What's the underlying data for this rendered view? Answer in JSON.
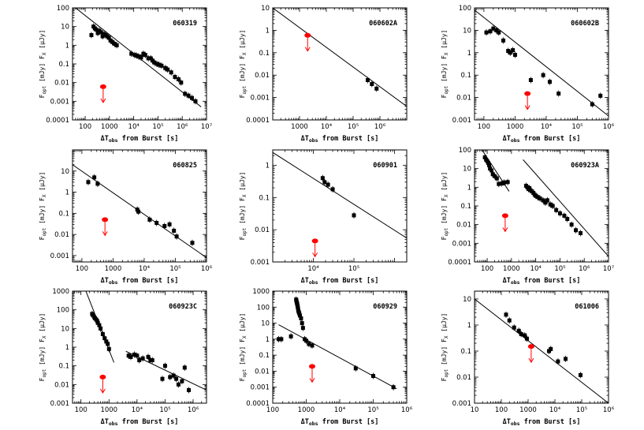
{
  "figure": {
    "xlabel_main": "ΔT",
    "xlabel_sub": "obs",
    "xlabel_rest": " from Burst [s]",
    "ylabel_opt": "F",
    "ylabel_opt_sub": "opt",
    "ylabel_mid": " [mJy]  F",
    "ylabel_x_sub": "X",
    "ylabel_end": " [μJy]",
    "colors": {
      "points": "#000000",
      "upper_limit": "#ff0000",
      "line": "#000000"
    }
  },
  "chart_data": [
    {
      "type": "scatter",
      "name": "060319",
      "xlim": [
        30,
        10000000
      ],
      "ylim": [
        0.0001,
        100
      ],
      "xticks": [
        "100",
        "1000",
        "10⁴",
        "10⁵",
        "10⁶",
        "10⁷"
      ],
      "yticks": [
        "0.0001",
        "0.001",
        "0.01",
        "0.1",
        "1",
        "10",
        "100"
      ],
      "lines": [
        [
          [
            40,
            100
          ],
          [
            6000000,
            0.0005
          ]
        ]
      ],
      "x": [
        180,
        220,
        250,
        280,
        330,
        380,
        450,
        520,
        600,
        700,
        800,
        950,
        1100,
        1300,
        1600,
        2000,
        8000,
        11000,
        13000,
        16000,
        20000,
        25000,
        30000,
        40000,
        50000,
        60000,
        70000,
        90000,
        110000,
        140000,
        200000,
        250000,
        350000,
        500000,
        700000,
        900000,
        1300000,
        1800000,
        2500000,
        3500000
      ],
      "y": [
        3.5,
        10,
        8,
        7,
        4.5,
        6,
        5,
        3,
        4,
        3.5,
        3,
        2.5,
        1.8,
        1.5,
        1.2,
        1,
        0.35,
        0.3,
        0.28,
        0.25,
        0.22,
        0.35,
        0.3,
        0.2,
        0.2,
        0.15,
        0.12,
        0.1,
        0.09,
        0.08,
        0.06,
        0.05,
        0.035,
        0.02,
        0.015,
        0.01,
        0.0025,
        0.002,
        0.0015,
        0.001
      ],
      "upper_limits": [
        {
          "x": 550,
          "y": 0.006
        }
      ]
    },
    {
      "type": "scatter",
      "name": "060602A",
      "xlim": [
        100,
        10000000
      ],
      "ylim": [
        0.0001,
        10
      ],
      "xticks": [
        "1000",
        "10⁴",
        "10⁵",
        "10⁶"
      ],
      "yticks": [
        "0.0001",
        "0.001",
        "0.01",
        "0.1",
        "1",
        "10"
      ],
      "lines": [
        [
          [
            100,
            10
          ],
          [
            10000000,
            0.0004
          ]
        ]
      ],
      "x": [
        350000,
        500000,
        750000
      ],
      "y": [
        0.006,
        0.004,
        0.0025
      ],
      "upper_limits": [
        {
          "x": 2000,
          "y": 0.6
        }
      ]
    },
    {
      "type": "scatter",
      "name": "060602B",
      "xlim": [
        50,
        1000000
      ],
      "ylim": [
        0.001,
        100
      ],
      "xticks": [
        "100",
        "1000",
        "10⁴",
        "10⁵",
        "10⁶"
      ],
      "yticks": [
        "0.001",
        "0.01",
        "0.1",
        "1",
        "10",
        "100"
      ],
      "lines": [
        [
          [
            50,
            80
          ],
          [
            1000000,
            0.0015
          ]
        ]
      ],
      "x": [
        120,
        160,
        200,
        250,
        300,
        420,
        600,
        700,
        850,
        1000,
        3200,
        8000,
        13000,
        25000,
        300000,
        550000
      ],
      "y": [
        8,
        9,
        12,
        10,
        8,
        3.5,
        1.2,
        1,
        1.3,
        0.8,
        0.06,
        0.1,
        0.05,
        0.015,
        0.005,
        0.012
      ],
      "upper_limits": [
        {
          "x": 2500,
          "y": 0.015
        }
      ]
    },
    {
      "type": "scatter",
      "name": "060825",
      "xlim": [
        50,
        1000000
      ],
      "ylim": [
        0.0005,
        100
      ],
      "xticks": [
        "100",
        "1000",
        "10⁴",
        "10⁵",
        "10⁶"
      ],
      "yticks": [
        "0.001",
        "0.01",
        "0.1",
        "1",
        "10"
      ],
      "lines": [
        [
          [
            50,
            20
          ],
          [
            1000000,
            0.0008
          ]
        ]
      ],
      "x": [
        160,
        250,
        320,
        6000,
        6500,
        15000,
        25000,
        45000,
        65000,
        90000,
        110000,
        350000
      ],
      "y": [
        3,
        5,
        2.5,
        0.15,
        0.12,
        0.05,
        0.035,
        0.025,
        0.03,
        0.015,
        0.008,
        0.004
      ],
      "upper_limits": [
        {
          "x": 550,
          "y": 0.05
        }
      ]
    },
    {
      "type": "scatter",
      "name": "060901",
      "xlim": [
        1000,
        2000000
      ],
      "ylim": [
        0.001,
        3
      ],
      "xticks": [
        "10⁴",
        "10⁵"
      ],
      "yticks": [
        "0.001",
        "0.01",
        "0.1",
        "1"
      ],
      "lines": [
        [
          [
            1000,
            2.5
          ],
          [
            2000000,
            0.0055
          ]
        ]
      ],
      "x": [
        17000,
        19000,
        23000,
        30000,
        100000
      ],
      "y": [
        0.4,
        0.3,
        0.25,
        0.18,
        0.028
      ],
      "upper_limits": [
        {
          "x": 11000,
          "y": 0.0045
        }
      ]
    },
    {
      "type": "scatter",
      "name": "060923A",
      "xlim": [
        30,
        10000000
      ],
      "ylim": [
        0.0001,
        100
      ],
      "xticks": [
        "100",
        "1000",
        "10⁴",
        "10⁵",
        "10⁶",
        "10⁷"
      ],
      "yticks": [
        "0.0001",
        "0.001",
        "0.01",
        "0.1",
        "1",
        "10",
        "100"
      ],
      "lines": [
        [
          [
            50,
            150
          ],
          [
            800,
            0.6
          ]
        ],
        [
          [
            3000,
            30
          ],
          [
            10000000,
            0.0002
          ]
        ]
      ],
      "x": [
        80,
        90,
        100,
        110,
        120,
        130,
        150,
        170,
        200,
        250,
        300,
        400,
        500,
        700,
        4000,
        4500,
        5000,
        5500,
        6000,
        7000,
        8000,
        9000,
        10000,
        12000,
        15000,
        20000,
        25000,
        30000,
        40000,
        50000,
        70000,
        100000,
        150000,
        200000,
        300000,
        450000,
        700000
      ],
      "y": [
        40,
        30,
        25,
        20,
        15,
        10,
        8,
        5,
        4,
        3,
        1.5,
        1.6,
        1.8,
        1.9,
        1.2,
        1,
        0.8,
        0.9,
        0.7,
        0.6,
        0.5,
        0.4,
        0.35,
        0.3,
        0.25,
        0.2,
        0.15,
        0.2,
        0.12,
        0.1,
        0.06,
        0.04,
        0.03,
        0.02,
        0.01,
        0.005,
        0.0035
      ],
      "upper_limits": [
        {
          "x": 550,
          "y": 0.03
        }
      ]
    },
    {
      "type": "scatter",
      "name": "060923C",
      "xlim": [
        50,
        3000000
      ],
      "ylim": [
        0.001,
        1000
      ],
      "xticks": [
        "100",
        "1000",
        "10⁴",
        "10⁵",
        "10⁶"
      ],
      "yticks": [
        "0.001",
        "0.01",
        "0.1",
        "1",
        "10",
        "100",
        "1000"
      ],
      "lines": [
        [
          [
            150,
            1000
          ],
          [
            1500,
            0.15
          ]
        ],
        [
          [
            4000,
            0.6
          ],
          [
            3000000,
            0.005
          ]
        ]
      ],
      "x": [
        250,
        270,
        300,
        320,
        350,
        380,
        400,
        450,
        500,
        600,
        700,
        800,
        900,
        1000,
        5000,
        6000,
        8000,
        10000,
        12000,
        16000,
        25000,
        30000,
        35000,
        80000,
        100000,
        150000,
        200000,
        250000,
        300000,
        400000,
        500000,
        700000
      ],
      "y": [
        60,
        50,
        40,
        35,
        30,
        25,
        20,
        15,
        10,
        5,
        3,
        2,
        1.5,
        0.8,
        0.35,
        0.3,
        0.4,
        0.35,
        0.2,
        0.25,
        0.3,
        0.2,
        0.2,
        0.02,
        0.1,
        0.025,
        0.03,
        0.02,
        0.01,
        0.015,
        0.08,
        0.005
      ],
      "upper_limits": [
        {
          "x": 600,
          "y": 0.025
        }
      ]
    },
    {
      "type": "scatter",
      "name": "060929",
      "xlim": [
        100,
        1000000
      ],
      "ylim": [
        0.0001,
        1000
      ],
      "xticks": [
        "100",
        "1000",
        "10⁴",
        "10⁵",
        "10⁶"
      ],
      "yticks": [
        "0.0001",
        "0.001",
        "0.01",
        "0.1",
        "1",
        "10",
        "100",
        "1000"
      ],
      "lines": [
        [
          [
            150,
            8
          ],
          [
            500000,
            0.0008
          ]
        ]
      ],
      "x": [
        150,
        180,
        350,
        500,
        510,
        520,
        530,
        540,
        550,
        560,
        570,
        580,
        600,
        620,
        650,
        700,
        750,
        800,
        900,
        1000,
        1200,
        1500,
        30000,
        100000,
        400000
      ],
      "y": [
        1,
        1,
        1.5,
        300,
        250,
        200,
        180,
        150,
        120,
        100,
        80,
        60,
        50,
        40,
        30,
        20,
        10,
        5,
        1,
        0.8,
        0.5,
        0.4,
        0.015,
        0.005,
        0.001
      ],
      "upper_limits": [
        {
          "x": 1500,
          "y": 0.02
        }
      ]
    },
    {
      "type": "scatter",
      "name": "061006",
      "xlim": [
        10,
        1000000
      ],
      "ylim": [
        0.001,
        20
      ],
      "xticks": [
        "10",
        "100",
        "1000",
        "10⁴",
        "10⁵",
        "10⁶"
      ],
      "yticks": [
        "0.001",
        "0.01",
        "0.1",
        "1",
        "10"
      ],
      "lines": [
        [
          [
            10,
            10
          ],
          [
            1000000,
            0.001
          ]
        ]
      ],
      "x": [
        150,
        200,
        300,
        450,
        550,
        750,
        900,
        6000,
        7000,
        13000,
        25000,
        90000
      ],
      "y": [
        2.5,
        1.5,
        0.8,
        0.6,
        0.45,
        0.4,
        0.3,
        0.1,
        0.12,
        0.04,
        0.05,
        0.012
      ],
      "upper_limits": [
        {
          "x": 1300,
          "y": 0.15
        }
      ]
    }
  ]
}
